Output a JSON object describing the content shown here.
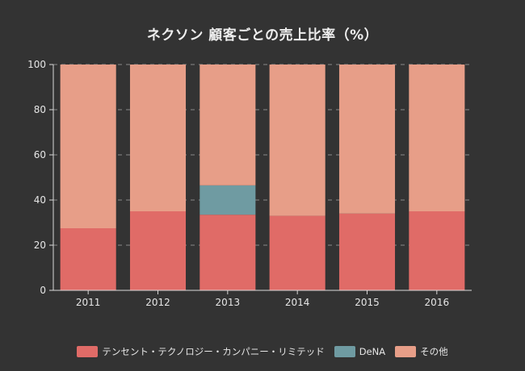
{
  "chart_data": {
    "type": "bar",
    "stacked": true,
    "title": "ネクソン 顧客ごとの売上比率（%）",
    "categories": [
      "2011",
      "2012",
      "2013",
      "2014",
      "2015",
      "2016"
    ],
    "series": [
      {
        "name": "テンセント・テクノロジー・カンパニー・リミテッド",
        "color": "#e06b67",
        "values": [
          27.5,
          35,
          33.5,
          33,
          34,
          35
        ]
      },
      {
        "name": "DeNA",
        "color": "#6f9ba2",
        "values": [
          0,
          0,
          13,
          0,
          0,
          0
        ]
      },
      {
        "name": "その他",
        "color": "#e79e88",
        "values": [
          72.5,
          65,
          53.5,
          67,
          66,
          65
        ]
      }
    ],
    "ylim": [
      0,
      100
    ],
    "yticks": [
      0,
      20,
      40,
      60,
      80,
      100
    ],
    "xlabel": "",
    "ylabel": "",
    "grid": true,
    "legend": "bottom"
  }
}
